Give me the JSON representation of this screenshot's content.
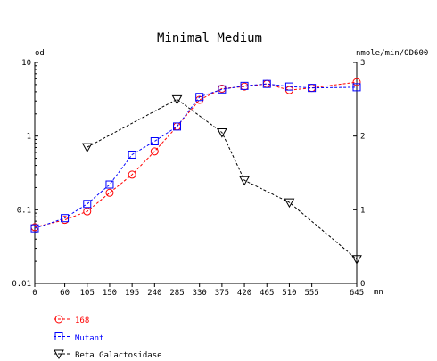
{
  "chart_data": {
    "type": "line",
    "title": "Minimal Medium",
    "x": {
      "ticks": [
        0,
        60,
        105,
        150,
        195,
        240,
        285,
        330,
        375,
        420,
        465,
        510,
        555,
        645
      ],
      "range": [
        0,
        645
      ],
      "unit": "mn"
    },
    "y_left": {
      "label": "od",
      "scale": "log",
      "range": [
        0.01,
        10
      ],
      "ticks": [
        0.01,
        0.1,
        1,
        10
      ],
      "tick_labels": [
        "0.01",
        "0.1",
        "1",
        "10"
      ]
    },
    "y_right": {
      "label": "nmole/min/OD600",
      "scale": "linear",
      "range": [
        0,
        3
      ],
      "ticks": [
        0,
        1,
        2,
        3
      ],
      "tick_labels": [
        "0",
        "1",
        "2",
        "3"
      ]
    },
    "grid": false,
    "legend_position": "bottom-left",
    "series": [
      {
        "name": "168",
        "axis": "left",
        "color": "#ff0000",
        "marker": "circle",
        "line_style": "dashed",
        "x": [
          0,
          60,
          105,
          150,
          195,
          240,
          285,
          330,
          375,
          420,
          465,
          510,
          555,
          645
        ],
        "y": [
          0.058,
          0.073,
          0.095,
          0.17,
          0.3,
          0.62,
          1.35,
          3.1,
          4.4,
          4.7,
          5.1,
          4.2,
          4.5,
          5.4
        ]
      },
      {
        "name": "Mutant",
        "axis": "left",
        "color": "#0000ff",
        "marker": "square",
        "line_style": "dashed",
        "x": [
          0,
          60,
          105,
          150,
          195,
          240,
          285,
          330,
          375,
          420,
          465,
          510,
          555,
          645
        ],
        "y": [
          0.056,
          0.077,
          0.12,
          0.22,
          0.56,
          0.85,
          1.35,
          3.4,
          4.3,
          4.8,
          5.1,
          4.7,
          4.5,
          4.6
        ]
      },
      {
        "name": "Beta Galactosidase",
        "axis": "right",
        "color": "#000000",
        "marker": "triangle-down",
        "line_style": "dashed",
        "x": [
          105,
          285,
          375,
          420,
          510,
          645
        ],
        "y": [
          1.85,
          2.5,
          2.05,
          1.4,
          1.1,
          0.33
        ]
      }
    ]
  }
}
